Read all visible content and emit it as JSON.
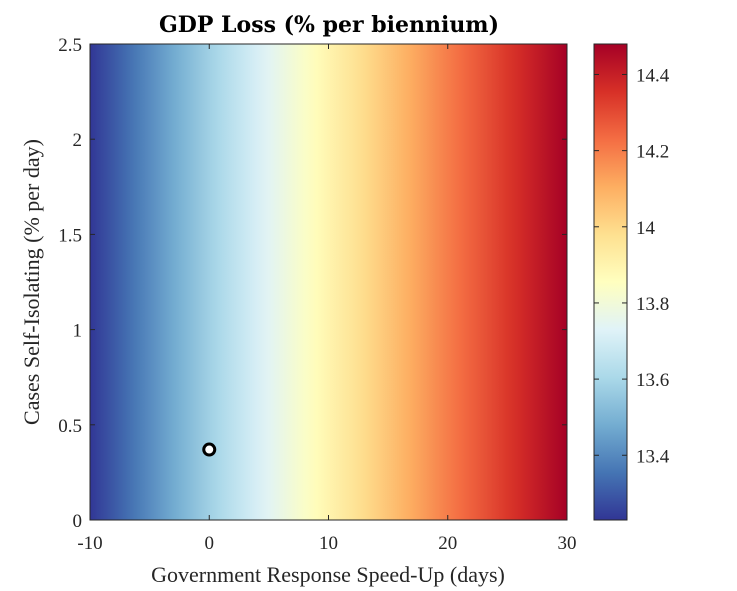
{
  "chart_data": {
    "type": "heatmap",
    "title": "GDP Loss (% per biennium)",
    "xlabel": "Government Response Speed-Up (days)",
    "ylabel": "Cases Self-Isolating (% per day)",
    "xlim": [
      -10,
      30
    ],
    "ylim": [
      0,
      2.5
    ],
    "xticks": [
      -10,
      0,
      10,
      20,
      30
    ],
    "xtick_labels": [
      "-10",
      "0",
      "10",
      "20",
      "30"
    ],
    "yticks": [
      0,
      0.5,
      1,
      1.5,
      2,
      2.5
    ],
    "ytick_labels": [
      "0",
      "0.5",
      "1",
      "1.5",
      "2",
      "2.5"
    ],
    "color_range": [
      13.23,
      14.48
    ],
    "colorbar_ticks": [
      13.4,
      13.6,
      13.8,
      14,
      14.2,
      14.4
    ],
    "colorbar_tick_labels": [
      "13.4",
      "13.6",
      "13.8",
      "14",
      "14.2",
      "14.4"
    ],
    "colormap": "RdYlBu (reversed)",
    "colormap_stops": [
      "#313695",
      "#4575b4",
      "#74add1",
      "#abd9e9",
      "#e0f3f8",
      "#ffffbf",
      "#fee090",
      "#fdae61",
      "#f46d43",
      "#d73027",
      "#a50026"
    ],
    "gradient_direction": "x",
    "field_samples": [
      {
        "x": -10,
        "value": 13.23
      },
      {
        "x": 0,
        "value": 13.58
      },
      {
        "x": 10,
        "value": 13.9
      },
      {
        "x": 20,
        "value": 14.2
      },
      {
        "x": 30,
        "value": 14.48
      }
    ],
    "marker": {
      "x": 0,
      "y": 0.37,
      "shape": "circle",
      "edge_color": "#000000",
      "face_color": "#ffffff"
    },
    "grid": false,
    "legend": "none"
  }
}
